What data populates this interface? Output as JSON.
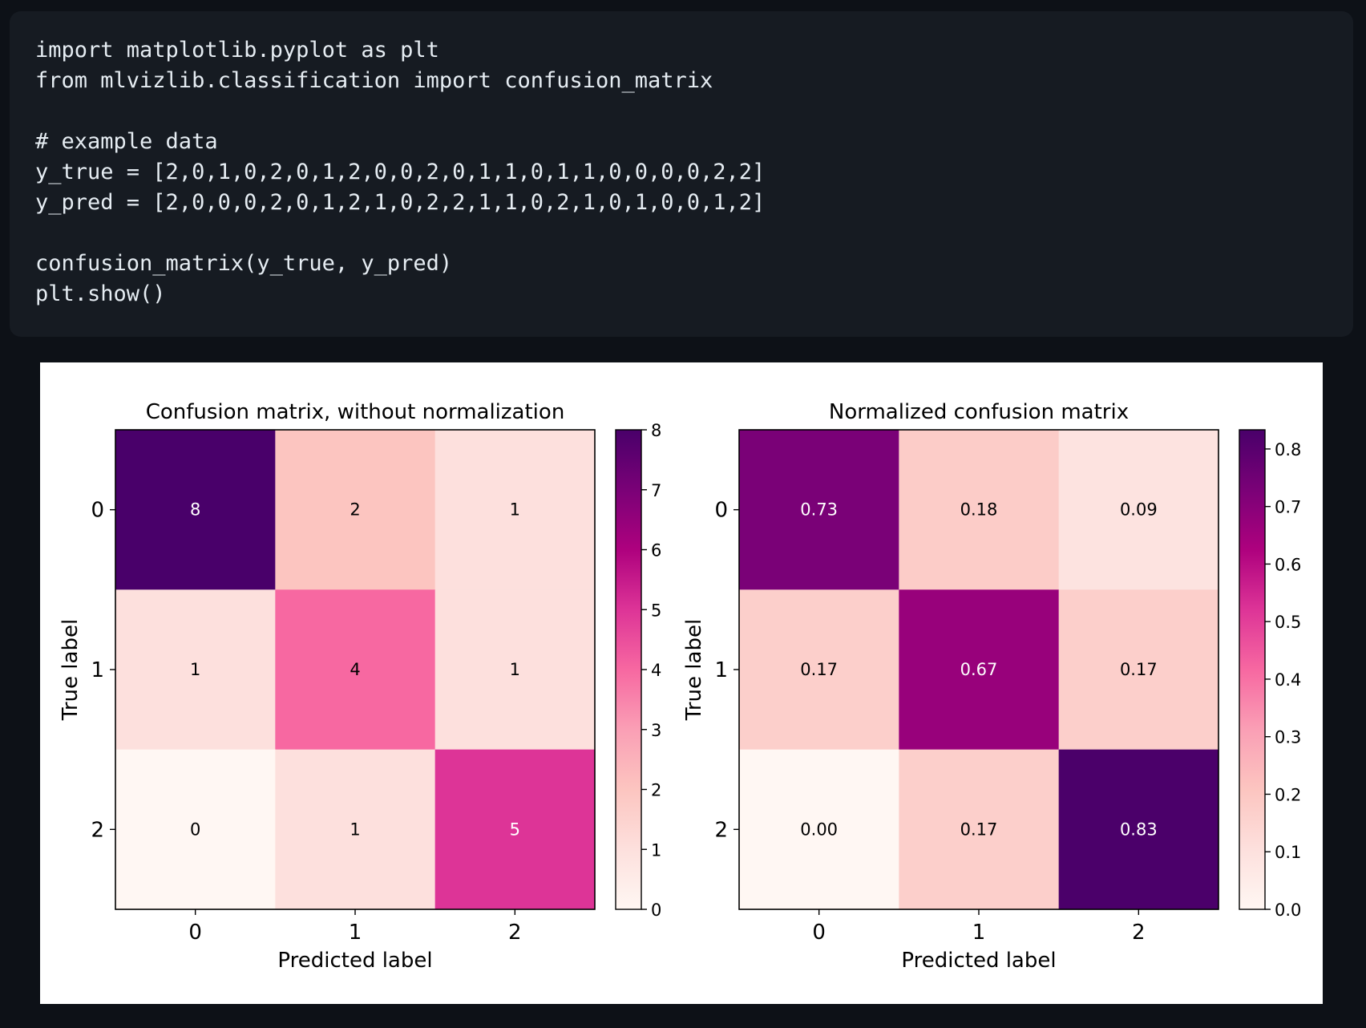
{
  "code": {
    "lines": [
      "import matplotlib.pyplot as plt",
      "from mlvizlib.classification import confusion_matrix",
      "",
      "# example data",
      "y_true = [2,0,1,0,2,0,1,2,0,0,2,0,1,1,0,1,1,0,0,0,0,2,2]",
      "y_pred = [2,0,0,0,2,0,1,2,1,0,2,2,1,1,0,2,1,0,1,0,0,1,2]",
      "",
      "confusion_matrix(y_true, y_pred)",
      "plt.show()"
    ]
  },
  "chart_data": [
    {
      "type": "heatmap",
      "title": "Confusion matrix, without normalization",
      "xlabel": "Predicted label",
      "ylabel": "True label",
      "x_categories": [
        "0",
        "1",
        "2"
      ],
      "y_categories": [
        "0",
        "1",
        "2"
      ],
      "values": [
        [
          8,
          2,
          1
        ],
        [
          1,
          4,
          1
        ],
        [
          0,
          1,
          5
        ]
      ],
      "cell_labels": [
        [
          "8",
          "2",
          "1"
        ],
        [
          "1",
          "4",
          "1"
        ],
        [
          "0",
          "1",
          "5"
        ]
      ],
      "vmin": 0,
      "vmax": 8,
      "colormap": "RdPu",
      "colorbar_ticks": [
        0,
        1,
        2,
        3,
        4,
        5,
        6,
        7,
        8
      ],
      "colorbar_tick_labels": [
        "0",
        "1",
        "2",
        "3",
        "4",
        "5",
        "6",
        "7",
        "8"
      ]
    },
    {
      "type": "heatmap",
      "title": "Normalized confusion matrix",
      "xlabel": "Predicted label",
      "ylabel": "True label",
      "x_categories": [
        "0",
        "1",
        "2"
      ],
      "y_categories": [
        "0",
        "1",
        "2"
      ],
      "values": [
        [
          0.73,
          0.18,
          0.09
        ],
        [
          0.17,
          0.67,
          0.17
        ],
        [
          0.0,
          0.17,
          0.83
        ]
      ],
      "cell_labels": [
        [
          "0.73",
          "0.18",
          "0.09"
        ],
        [
          "0.17",
          "0.67",
          "0.17"
        ],
        [
          "0.00",
          "0.17",
          "0.83"
        ]
      ],
      "vmin": 0,
      "vmax": 0.8333,
      "colormap": "RdPu",
      "colorbar_ticks": [
        0.0,
        0.1,
        0.2,
        0.3,
        0.4,
        0.5,
        0.6,
        0.7,
        0.8
      ],
      "colorbar_tick_labels": [
        "0.0",
        "0.1",
        "0.2",
        "0.3",
        "0.4",
        "0.5",
        "0.6",
        "0.7",
        "0.8"
      ]
    }
  ]
}
